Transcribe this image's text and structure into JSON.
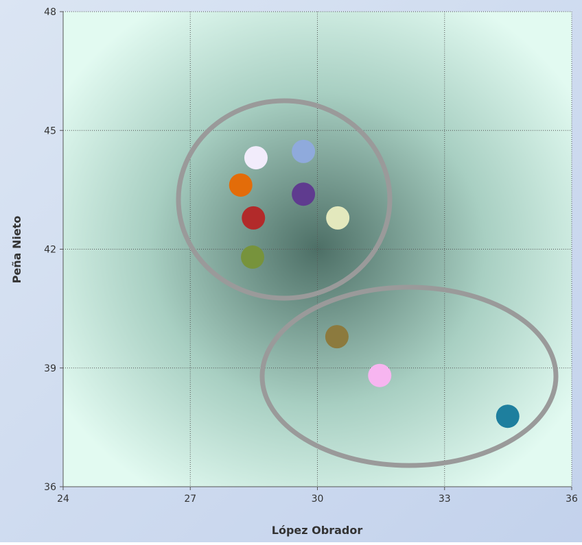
{
  "chart_data": {
    "type": "scatter",
    "x_label": "López Obrador",
    "y_label": "Peña Nieto",
    "xlim": [
      24,
      36
    ],
    "xticks": [
      24,
      27,
      30,
      33,
      36
    ],
    "ylim": [
      36,
      48
    ],
    "yticks": [
      36,
      39,
      42,
      45,
      48
    ],
    "grid": true,
    "series": [
      {
        "x": [
          28.55,
          29.67,
          28.19,
          29.67,
          28.49,
          30.48,
          28.47,
          30.46,
          31.47,
          34.49
        ],
        "values": [
          44.31,
          44.47,
          43.62,
          43.39,
          42.79,
          42.79,
          41.8,
          39.79,
          38.81,
          37.78
        ],
        "colors": [
          "#f2ecfb",
          "#8faadc",
          "#e36c09",
          "#5f3b8f",
          "#b22a2a",
          "#e3e8bd",
          "#77933c",
          "#8c7a3e",
          "#f7b5f0",
          "#1e7f9e"
        ]
      }
    ]
  }
}
